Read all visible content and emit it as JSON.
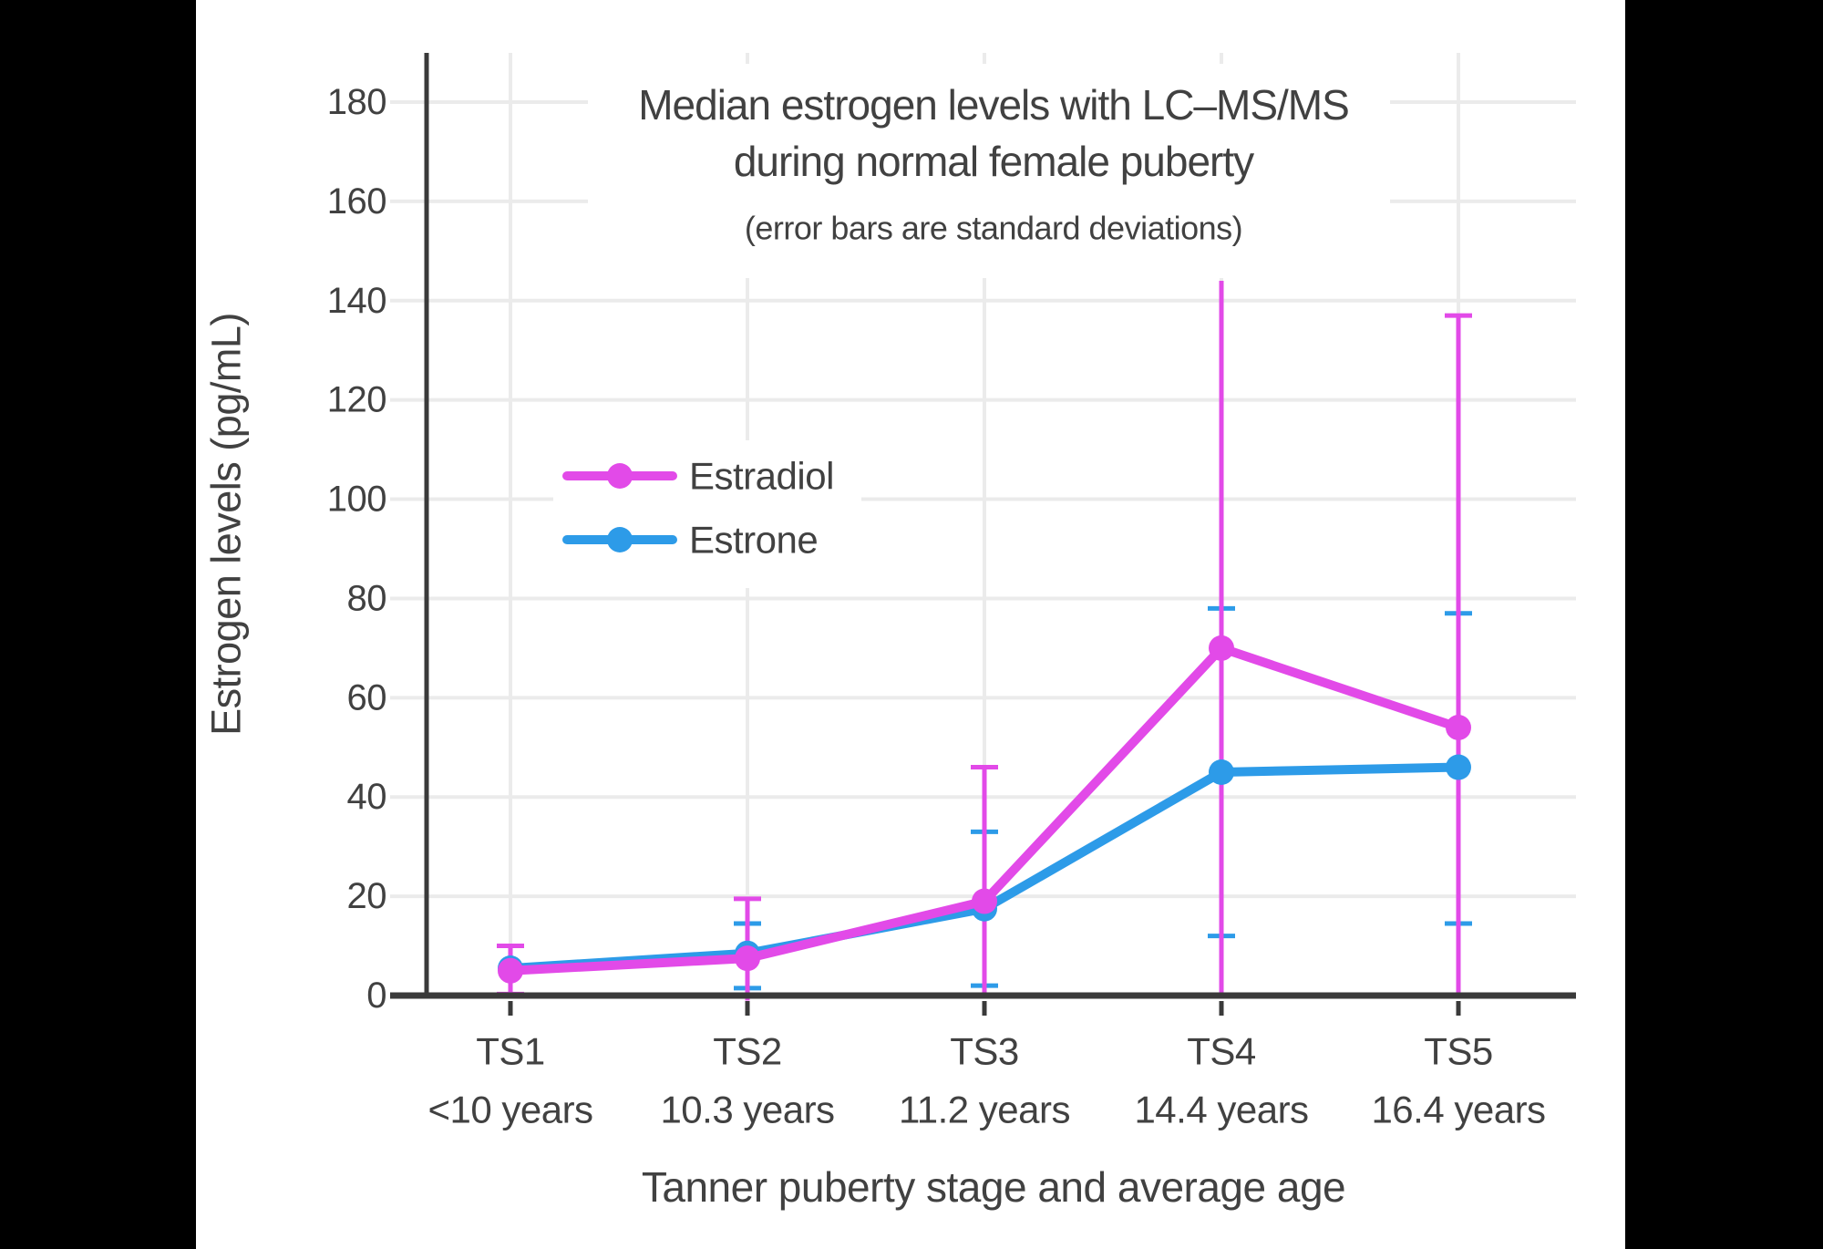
{
  "page": {
    "letterbox_color": "#000000",
    "canvas_color": "#ffffff"
  },
  "chart_data": {
    "type": "line",
    "title": "Median estrogen levels with LC–MS/MS during normal female puberty",
    "title_lines": [
      "Median estrogen levels with LC–MS/MS",
      "during normal female puberty"
    ],
    "subtitle": "(error bars are standard deviations)",
    "xlabel": "Tanner puberty stage and average age",
    "ylabel": "Estrogen levels (pg/mL)",
    "categories": [
      "TS1",
      "TS2",
      "TS3",
      "TS4",
      "TS5"
    ],
    "category_sublabels": [
      "<10 years",
      "10.3 years",
      "11.2 years",
      "14.4 years",
      "16.4 years"
    ],
    "ylim": [
      0,
      190
    ],
    "yticks": [
      0,
      20,
      40,
      60,
      80,
      100,
      120,
      140,
      160,
      180
    ],
    "grid": true,
    "legend_position": "inside-upper-left",
    "series": [
      {
        "name": "Estradiol",
        "color": "#E24AE8",
        "values": [
          5,
          7.5,
          19,
          70,
          54
        ],
        "error_high": [
          10,
          19.5,
          46,
          144,
          137
        ],
        "error_high_cap": [
          true,
          true,
          true,
          false,
          true
        ],
        "error_low": [
          0.3,
          -1,
          0,
          0,
          0
        ],
        "error_low_cap": [
          true,
          false,
          false,
          false,
          false
        ]
      },
      {
        "name": "Estrone",
        "color": "#2D9BE8",
        "values": [
          5.5,
          8.5,
          17.5,
          45,
          46
        ],
        "error_high": [
          null,
          14.5,
          33,
          78,
          77
        ],
        "error_high_cap": [
          false,
          true,
          true,
          true,
          true
        ],
        "error_low": [
          null,
          1.5,
          2,
          12,
          14.5
        ],
        "error_low_cap": [
          false,
          true,
          true,
          true,
          true
        ]
      }
    ],
    "style": {
      "grid_color": "#EBEBEB",
      "axis_color": "#3A3A3A",
      "text_color": "#414141"
    }
  }
}
